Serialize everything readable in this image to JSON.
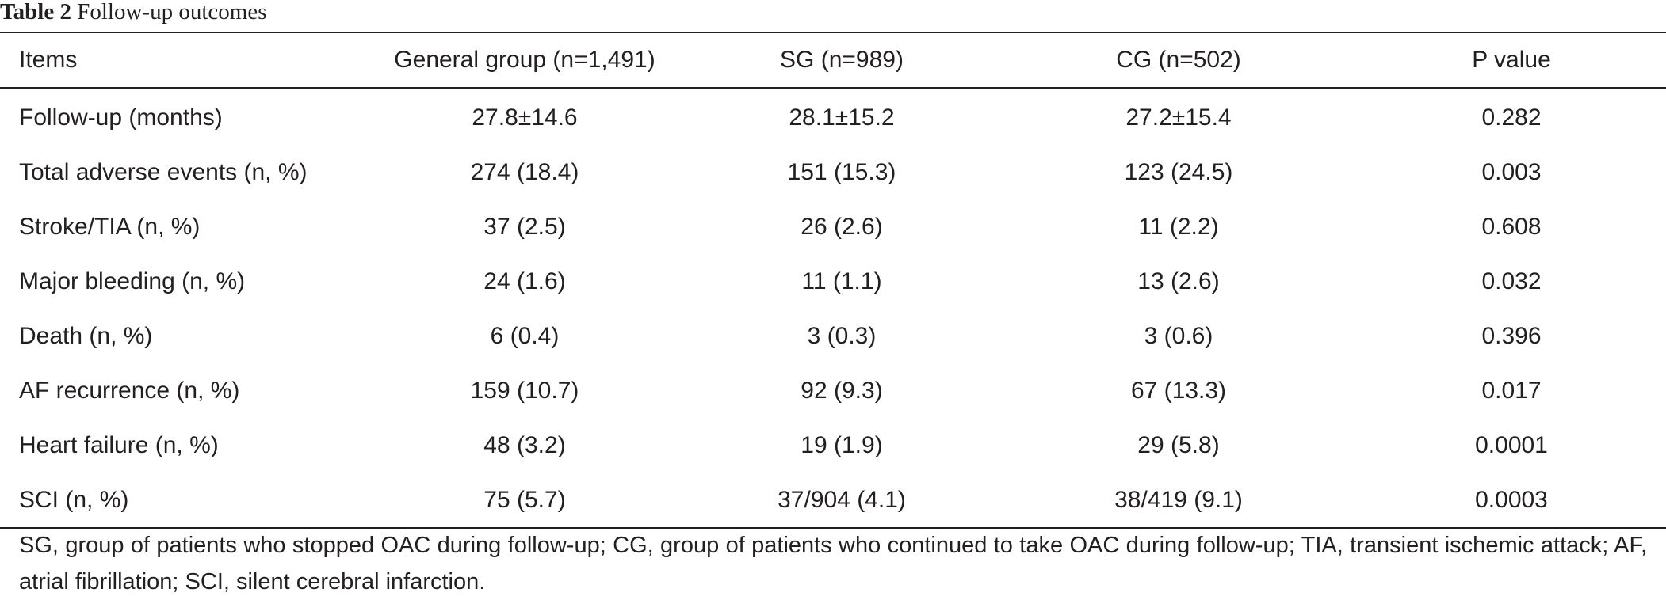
{
  "caption": {
    "label": "Table 2",
    "title": "Follow-up outcomes"
  },
  "table": {
    "headers": [
      "Items",
      "General group (n=1,491)",
      "SG (n=989)",
      "CG (n=502)",
      "P value"
    ],
    "rows": [
      [
        "Follow-up (months)",
        "27.8±14.6",
        "28.1±15.2",
        "27.2±15.4",
        "0.282"
      ],
      [
        "Total adverse events (n, %)",
        "274 (18.4)",
        "151 (15.3)",
        "123 (24.5)",
        "0.003"
      ],
      [
        "Stroke/TIA (n, %)",
        "37 (2.5)",
        "26 (2.6)",
        "11 (2.2)",
        "0.608"
      ],
      [
        "Major bleeding (n, %)",
        "24 (1.6)",
        "11 (1.1)",
        "13 (2.6)",
        "0.032"
      ],
      [
        "Death (n, %)",
        "6 (0.4)",
        "3 (0.3)",
        "3 (0.6)",
        "0.396"
      ],
      [
        "AF recurrence (n, %)",
        "159 (10.7)",
        "92 (9.3)",
        "67 (13.3)",
        "0.017"
      ],
      [
        "Heart failure (n, %)",
        "48 (3.2)",
        "19 (1.9)",
        "29 (5.8)",
        "0.0001"
      ],
      [
        "SCI (n, %)",
        "75 (5.7)",
        "37/904 (4.1)",
        "38/419 (9.1)",
        "0.0003"
      ]
    ]
  },
  "footnote": "SG, group of patients who stopped OAC during follow-up; CG, group of patients who continued to take OAC during follow-up; TIA, transient ischemic attack; AF, atrial fibrillation; SCI, silent cerebral infarction."
}
